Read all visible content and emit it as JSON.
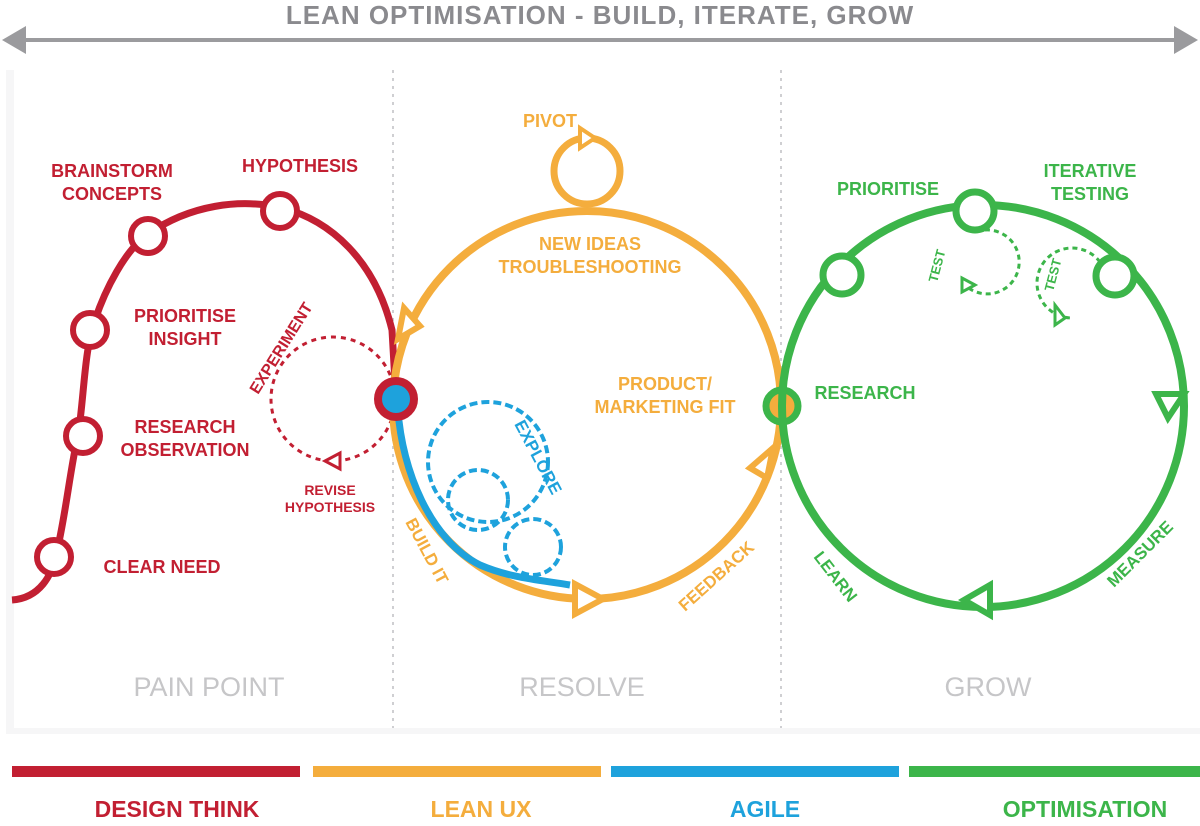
{
  "header": {
    "title": "LEAN OPTIMISATION - BUILD, ITERATE, GROW"
  },
  "colors": {
    "design_think": "#c21f32",
    "lean_ux": "#f4ad3d",
    "agile": "#1ea2dc",
    "optimisation": "#3cb54a",
    "section_text": "#c6c6c8",
    "arrow": "#9b9b9e"
  },
  "pain_point": {
    "section": "PAIN POINT",
    "clear_need": "CLEAR NEED",
    "research_observation": [
      "RESEARCH",
      "OBSERVATION"
    ],
    "prioritise_insight": [
      "PRIORITISE",
      "INSIGHT"
    ],
    "brainstorm_concepts": [
      "BRAINSTORM",
      "CONCEPTS"
    ],
    "hypothesis": "HYPOTHESIS",
    "experiment": "EXPERIMENT",
    "revise_hypothesis": [
      "REVISE",
      "HYPOTHESIS"
    ]
  },
  "resolve": {
    "section": "RESOLVE",
    "pivot": "PIVOT",
    "new_ideas": [
      "NEW IDEAS",
      "TROUBLESHOOTING"
    ],
    "product_fit": [
      "PRODUCT/",
      "MARKETING FIT"
    ],
    "explore": "EXPLORE",
    "build_it": "BUILD IT",
    "feedback": "FEEDBACK"
  },
  "grow": {
    "section": "GROW",
    "prioritise": "PRIORITISE",
    "iterative_testing": [
      "ITERATIVE",
      "TESTING"
    ],
    "research": "RESEARCH",
    "test": "TEST",
    "measure": "MEASURE",
    "learn": "LEARN"
  },
  "legend": {
    "design_think": "DESIGN THINK",
    "lean_ux": "LEAN UX",
    "agile": "AGILE",
    "optimisation": "OPTIMISATION"
  }
}
